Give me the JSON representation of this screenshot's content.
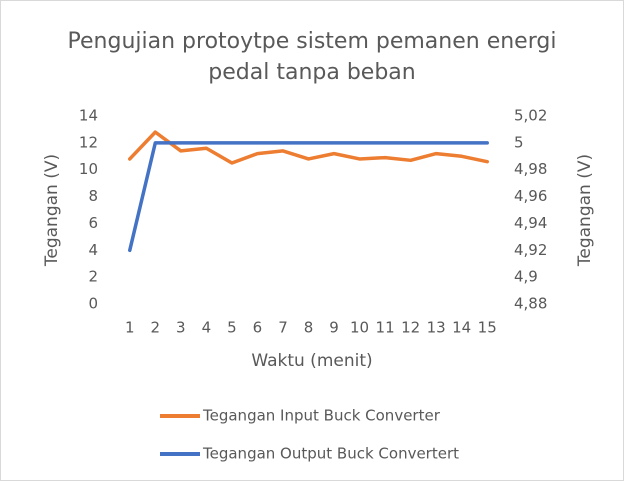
{
  "chart_data": {
    "type": "line",
    "title": "Pengujian protoytpe sistem pemanen energi pedal tanpa beban",
    "xlabel": "Waktu (menit)",
    "ylabel": "Tegangan (V)",
    "y2label": "Tegangan (V)",
    "categories": [
      "1",
      "2",
      "3",
      "4",
      "5",
      "6",
      "7",
      "8",
      "9",
      "10",
      "11",
      "12",
      "13",
      "14",
      "15"
    ],
    "series": [
      {
        "name": "Tegangan Input Buck Converter",
        "color": "#ED7D31",
        "values": [
          10.8,
          12.8,
          11.4,
          11.6,
          10.5,
          11.2,
          11.4,
          10.8,
          11.2,
          10.8,
          10.9,
          10.7,
          11.2,
          11.0,
          10.6
        ]
      },
      {
        "name": "Tegangan Output Buck Convertert",
        "color": "#4472C4",
        "axis": "y2",
        "values": [
          4.92,
          5,
          5,
          5,
          5,
          5,
          5,
          5,
          5,
          5,
          5,
          5,
          5,
          5,
          5
        ]
      }
    ],
    "ylim": [
      0,
      14
    ],
    "yticks": [
      0,
      2,
      4,
      6,
      8,
      10,
      12,
      14
    ],
    "y2lim": [
      4.88,
      5.02
    ],
    "y2ticks": [
      {
        "value": 4.88,
        "label": "4,88"
      },
      {
        "value": 4.9,
        "label": "4,9"
      },
      {
        "value": 4.92,
        "label": "4,92"
      },
      {
        "value": 4.94,
        "label": "4,94"
      },
      {
        "value": 4.96,
        "label": "4,96"
      },
      {
        "value": 4.98,
        "label": "4,98"
      },
      5,
      {
        "value": 5.02,
        "label": "5,02"
      }
    ],
    "grid": false,
    "legend": "bottom"
  }
}
